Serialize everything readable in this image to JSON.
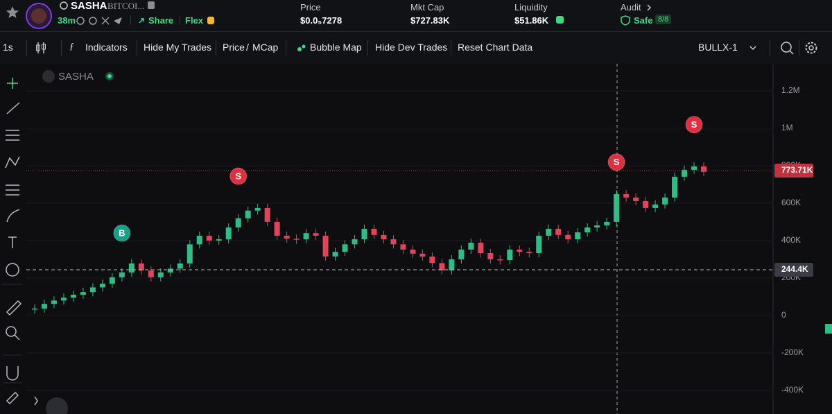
{
  "header": {
    "token_name": "SASHA",
    "token_sub": "BITCOI...",
    "age": "38m",
    "share": "Share",
    "flex": "Flex",
    "stats": [
      {
        "label": "Price",
        "value": "$0.0₅7278"
      },
      {
        "label": "Mkt Cap",
        "value": "$727.83K"
      },
      {
        "label": "Liquidity",
        "value": "$51.86K"
      }
    ],
    "audit": {
      "label": "Audit",
      "status": "Safe",
      "score": "8/8"
    }
  },
  "toolbar": {
    "interval": "1s",
    "indicators": "Indicators",
    "hide_my_trades": "Hide My Trades",
    "price": "Price",
    "separator": "/",
    "mcap": "MCap",
    "bubble_map": "Bubble Map",
    "hide_dev_trades": "Hide Dev Trades",
    "reset": "Reset Chart Data",
    "preset": "BULLX-1"
  },
  "chart_data": {
    "type": "candlestick",
    "symbol": "SASHA",
    "up_color": "#2ebd85",
    "down_color": "#e0445b",
    "values": [
      37000,
      62000,
      80000,
      95000,
      111000,
      125000,
      150000,
      170000,
      204000,
      230000,
      278000,
      240000,
      204000,
      230000,
      250000,
      278000,
      380000,
      426000,
      400000,
      407000,
      470000,
      519000,
      560000,
      574000,
      500000,
      426000,
      410000,
      407000,
      440000,
      426000,
      315000,
      340000,
      380000,
      407000,
      463000,
      430000,
      407000,
      380000,
      352000,
      330000,
      315000,
      280000,
      241000,
      300000,
      352000,
      389000,
      333000,
      300000,
      296000,
      352000,
      340000,
      333000,
      426000,
      463000,
      430000,
      407000,
      444000,
      470000,
      481000,
      500000,
      648000,
      630000,
      611000,
      574000,
      593000,
      630000,
      741000,
      778000,
      796000,
      767000
    ],
    "ylim": [
      -526000,
      1344000
    ],
    "yticks": [
      {
        "value": 1200000,
        "label": "1.2M"
      },
      {
        "value": 1000000,
        "label": "1M"
      },
      {
        "value": 800000,
        "label": "800K"
      },
      {
        "value": 600000,
        "label": "600K"
      },
      {
        "value": 400000,
        "label": "400K"
      },
      {
        "value": 200000,
        "label": "200K"
      },
      0,
      {
        "value": -200000,
        "label": "-200K"
      },
      {
        "value": -400000,
        "label": "-400K"
      }
    ],
    "grid": true,
    "markers": [
      {
        "label": "B",
        "index": 9,
        "value": 440000,
        "color": "#16a085"
      },
      {
        "label": "S",
        "index": 21,
        "value": 744000,
        "color": "#e0303f"
      },
      {
        "label": "S",
        "index": 60,
        "value": 819000,
        "color": "#e0303f"
      },
      {
        "label": "S",
        "index": 68,
        "value": 1019000,
        "color": "#e0303f"
      }
    ],
    "price_lines": [
      {
        "value": 773710,
        "label": "773.71K",
        "color": "#c0323f",
        "style": "dotted"
      },
      {
        "value": 244400,
        "label": "244.4K",
        "color": "#3a3d46",
        "style": "dashed"
      }
    ]
  }
}
